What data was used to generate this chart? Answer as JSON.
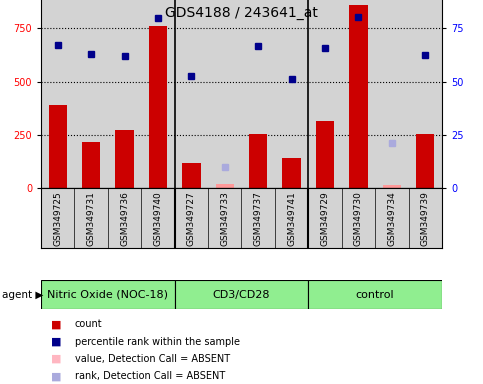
{
  "title": "GDS4188 / 243641_at",
  "samples": [
    "GSM349725",
    "GSM349731",
    "GSM349736",
    "GSM349740",
    "GSM349727",
    "GSM349733",
    "GSM349737",
    "GSM349741",
    "GSM349729",
    "GSM349730",
    "GSM349734",
    "GSM349739"
  ],
  "groups": [
    {
      "label": "Nitric Oxide (NOC-18)",
      "start": 0,
      "end": 4
    },
    {
      "label": "CD3/CD28",
      "start": 4,
      "end": 8
    },
    {
      "label": "control",
      "start": 8,
      "end": 12
    }
  ],
  "bar_values": [
    390,
    215,
    275,
    760,
    120,
    20,
    255,
    140,
    315,
    860,
    15,
    255
  ],
  "bar_absent": [
    false,
    false,
    false,
    false,
    false,
    true,
    false,
    false,
    false,
    false,
    true,
    false
  ],
  "rank_values": [
    67,
    63,
    62,
    80,
    52.5,
    10,
    66.5,
    51,
    66,
    80.5,
    21,
    62.5
  ],
  "rank_absent": [
    false,
    false,
    false,
    false,
    false,
    true,
    false,
    false,
    false,
    false,
    true,
    false
  ],
  "ylim_left": [
    0,
    1000
  ],
  "ylim_right": [
    0,
    100
  ],
  "yticks_left": [
    0,
    250,
    500,
    750,
    1000
  ],
  "yticks_right": [
    0,
    25,
    50,
    75,
    100
  ],
  "bar_color_present": "#CC0000",
  "bar_color_absent": "#FF9999",
  "rank_color_present": "#00008B",
  "rank_color_absent": "#AAAADD",
  "bg_color": "#D3D3D3",
  "group_color": "#90EE90",
  "dotted_lines": [
    250,
    500,
    750
  ],
  "legend_items": [
    {
      "label": "count",
      "color": "#CC0000"
    },
    {
      "label": "percentile rank within the sample",
      "color": "#00008B"
    },
    {
      "label": "value, Detection Call = ABSENT",
      "color": "#FFB6C1"
    },
    {
      "label": "rank, Detection Call = ABSENT",
      "color": "#AAAADD"
    }
  ],
  "title_fontsize": 10,
  "tick_fontsize": 7,
  "label_fontsize": 6.5,
  "group_fontsize": 8,
  "legend_fontsize": 7
}
